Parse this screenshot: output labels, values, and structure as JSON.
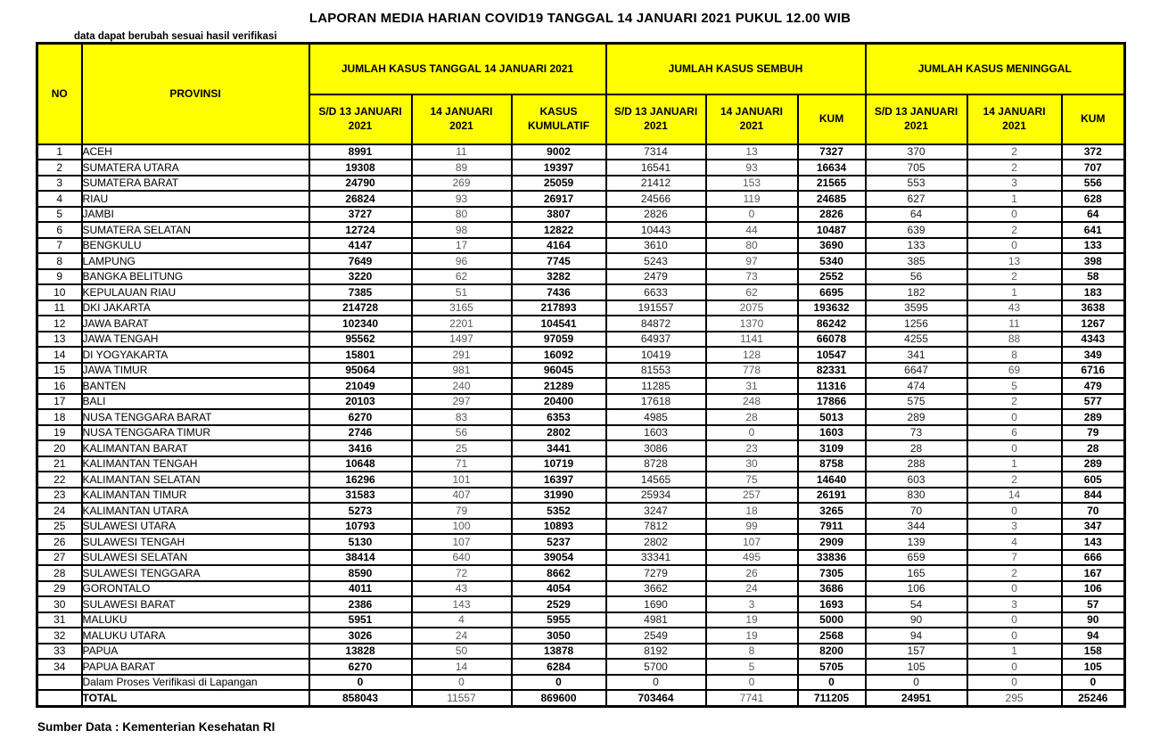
{
  "title": "LAPORAN MEDIA HARIAN COVID19 TANGGAL 14 JANUARI 2021 PUKUL 12.00 WIB",
  "note": "data dapat berubah sesuai hasil verifikasi",
  "footer": "Sumber Data : Kementerian Kesehatan RI",
  "colors": {
    "header_bg": "#FFFF00",
    "border": "#000000",
    "muted_text": "#595959"
  },
  "table": {
    "corner_headers": [
      "NO",
      "PROVINSI"
    ],
    "group_headers": [
      "JUMLAH KASUS TANGGAL 14 JANUARI 2021",
      "JUMLAH KASUS SEMBUH",
      "JUMLAH KASUS MENINGGAL"
    ],
    "sub_headers": [
      "S/D 13 JANUARI\n2021",
      "14 JANUARI\n2021",
      "KASUS\nKUMULATIF",
      "S/D 13 JANUARI\n2021",
      "14 JANUARI\n2021",
      "KUM",
      "S/D 13 JANUARI\n2021",
      "14 JANUARI\n2021",
      "KUM"
    ],
    "rows": [
      {
        "no": "1",
        "provinsi": "ACEH",
        "values": [
          8991,
          11,
          9002,
          7314,
          13,
          7327,
          370,
          2,
          372
        ]
      },
      {
        "no": "2",
        "provinsi": "SUMATERA UTARA",
        "values": [
          19308,
          89,
          19397,
          16541,
          93,
          16634,
          705,
          2,
          707
        ]
      },
      {
        "no": "3",
        "provinsi": "SUMATERA BARAT",
        "values": [
          24790,
          269,
          25059,
          21412,
          153,
          21565,
          553,
          3,
          556
        ]
      },
      {
        "no": "4",
        "provinsi": "RIAU",
        "values": [
          26824,
          93,
          26917,
          24566,
          119,
          24685,
          627,
          1,
          628
        ]
      },
      {
        "no": "5",
        "provinsi": "JAMBI",
        "values": [
          3727,
          80,
          3807,
          2826,
          0,
          2826,
          64,
          0,
          64
        ]
      },
      {
        "no": "6",
        "provinsi": "SUMATERA SELATAN",
        "values": [
          12724,
          98,
          12822,
          10443,
          44,
          10487,
          639,
          2,
          641
        ]
      },
      {
        "no": "7",
        "provinsi": "BENGKULU",
        "values": [
          4147,
          17,
          4164,
          3610,
          80,
          3690,
          133,
          0,
          133
        ]
      },
      {
        "no": "8",
        "provinsi": "LAMPUNG",
        "values": [
          7649,
          96,
          7745,
          5243,
          97,
          5340,
          385,
          13,
          398
        ]
      },
      {
        "no": "9",
        "provinsi": "BANGKA BELITUNG",
        "values": [
          3220,
          62,
          3282,
          2479,
          73,
          2552,
          56,
          2,
          58
        ]
      },
      {
        "no": "10",
        "provinsi": "KEPULAUAN RIAU",
        "values": [
          7385,
          51,
          7436,
          6633,
          62,
          6695,
          182,
          1,
          183
        ]
      },
      {
        "no": "11",
        "provinsi": "DKI JAKARTA",
        "values": [
          214728,
          3165,
          217893,
          191557,
          2075,
          193632,
          3595,
          43,
          3638
        ]
      },
      {
        "no": "12",
        "provinsi": "JAWA BARAT",
        "values": [
          102340,
          2201,
          104541,
          84872,
          1370,
          86242,
          1256,
          11,
          1267
        ]
      },
      {
        "no": "13",
        "provinsi": "JAWA TENGAH",
        "values": [
          95562,
          1497,
          97059,
          64937,
          1141,
          66078,
          4255,
          88,
          4343
        ]
      },
      {
        "no": "14",
        "provinsi": "DI YOGYAKARTA",
        "values": [
          15801,
          291,
          16092,
          10419,
          128,
          10547,
          341,
          8,
          349
        ]
      },
      {
        "no": "15",
        "provinsi": "JAWA TIMUR",
        "values": [
          95064,
          981,
          96045,
          81553,
          778,
          82331,
          6647,
          69,
          6716
        ]
      },
      {
        "no": "16",
        "provinsi": "BANTEN",
        "values": [
          21049,
          240,
          21289,
          11285,
          31,
          11316,
          474,
          5,
          479
        ]
      },
      {
        "no": "17",
        "provinsi": "BALI",
        "values": [
          20103,
          297,
          20400,
          17618,
          248,
          17866,
          575,
          2,
          577
        ]
      },
      {
        "no": "18",
        "provinsi": "NUSA TENGGARA BARAT",
        "values": [
          6270,
          83,
          6353,
          4985,
          28,
          5013,
          289,
          0,
          289
        ]
      },
      {
        "no": "19",
        "provinsi": "NUSA TENGGARA TIMUR",
        "values": [
          2746,
          56,
          2802,
          1603,
          0,
          1603,
          73,
          6,
          79
        ]
      },
      {
        "no": "20",
        "provinsi": "KALIMANTAN BARAT",
        "values": [
          3416,
          25,
          3441,
          3086,
          23,
          3109,
          28,
          0,
          28
        ]
      },
      {
        "no": "21",
        "provinsi": "KALIMANTAN TENGAH",
        "values": [
          10648,
          71,
          10719,
          8728,
          30,
          8758,
          288,
          1,
          289
        ]
      },
      {
        "no": "22",
        "provinsi": "KALIMANTAN SELATAN",
        "values": [
          16296,
          101,
          16397,
          14565,
          75,
          14640,
          603,
          2,
          605
        ]
      },
      {
        "no": "23",
        "provinsi": "KALIMANTAN TIMUR",
        "values": [
          31583,
          407,
          31990,
          25934,
          257,
          26191,
          830,
          14,
          844
        ]
      },
      {
        "no": "24",
        "provinsi": "KALIMANTAN UTARA",
        "values": [
          5273,
          79,
          5352,
          3247,
          18,
          3265,
          70,
          0,
          70
        ]
      },
      {
        "no": "25",
        "provinsi": "SULAWESI UTARA",
        "values": [
          10793,
          100,
          10893,
          7812,
          99,
          7911,
          344,
          3,
          347
        ]
      },
      {
        "no": "26",
        "provinsi": "SULAWESI TENGAH",
        "values": [
          5130,
          107,
          5237,
          2802,
          107,
          2909,
          139,
          4,
          143
        ]
      },
      {
        "no": "27",
        "provinsi": "SULAWESI SELATAN",
        "values": [
          38414,
          640,
          39054,
          33341,
          495,
          33836,
          659,
          7,
          666
        ]
      },
      {
        "no": "28",
        "provinsi": "SULAWESI TENGGARA",
        "values": [
          8590,
          72,
          8662,
          7279,
          26,
          7305,
          165,
          2,
          167
        ]
      },
      {
        "no": "29",
        "provinsi": "GORONTALO",
        "values": [
          4011,
          43,
          4054,
          3662,
          24,
          3686,
          106,
          0,
          106
        ]
      },
      {
        "no": "30",
        "provinsi": "SULAWESI BARAT",
        "values": [
          2386,
          143,
          2529,
          1690,
          3,
          1693,
          54,
          3,
          57
        ]
      },
      {
        "no": "31",
        "provinsi": "MALUKU",
        "values": [
          5951,
          4,
          5955,
          4981,
          19,
          5000,
          90,
          0,
          90
        ]
      },
      {
        "no": "32",
        "provinsi": "MALUKU UTARA",
        "values": [
          3026,
          24,
          3050,
          2549,
          19,
          2568,
          94,
          0,
          94
        ]
      },
      {
        "no": "33",
        "provinsi": "PAPUA",
        "values": [
          13828,
          50,
          13878,
          8192,
          8,
          8200,
          157,
          1,
          158
        ]
      },
      {
        "no": "34",
        "provinsi": "PAPUA BARAT",
        "values": [
          6270,
          14,
          6284,
          5700,
          5,
          5705,
          105,
          0,
          105
        ]
      }
    ],
    "verification_row": {
      "no": "",
      "provinsi": "Dalam Proses Verifikasi di Lapangan",
      "values": [
        0,
        0,
        0,
        0,
        0,
        0,
        0,
        0,
        0
      ]
    },
    "total_row": {
      "no": "",
      "provinsi": "TOTAL",
      "values": [
        858043,
        11557,
        869600,
        703464,
        7741,
        711205,
        24951,
        295,
        25246
      ]
    }
  }
}
